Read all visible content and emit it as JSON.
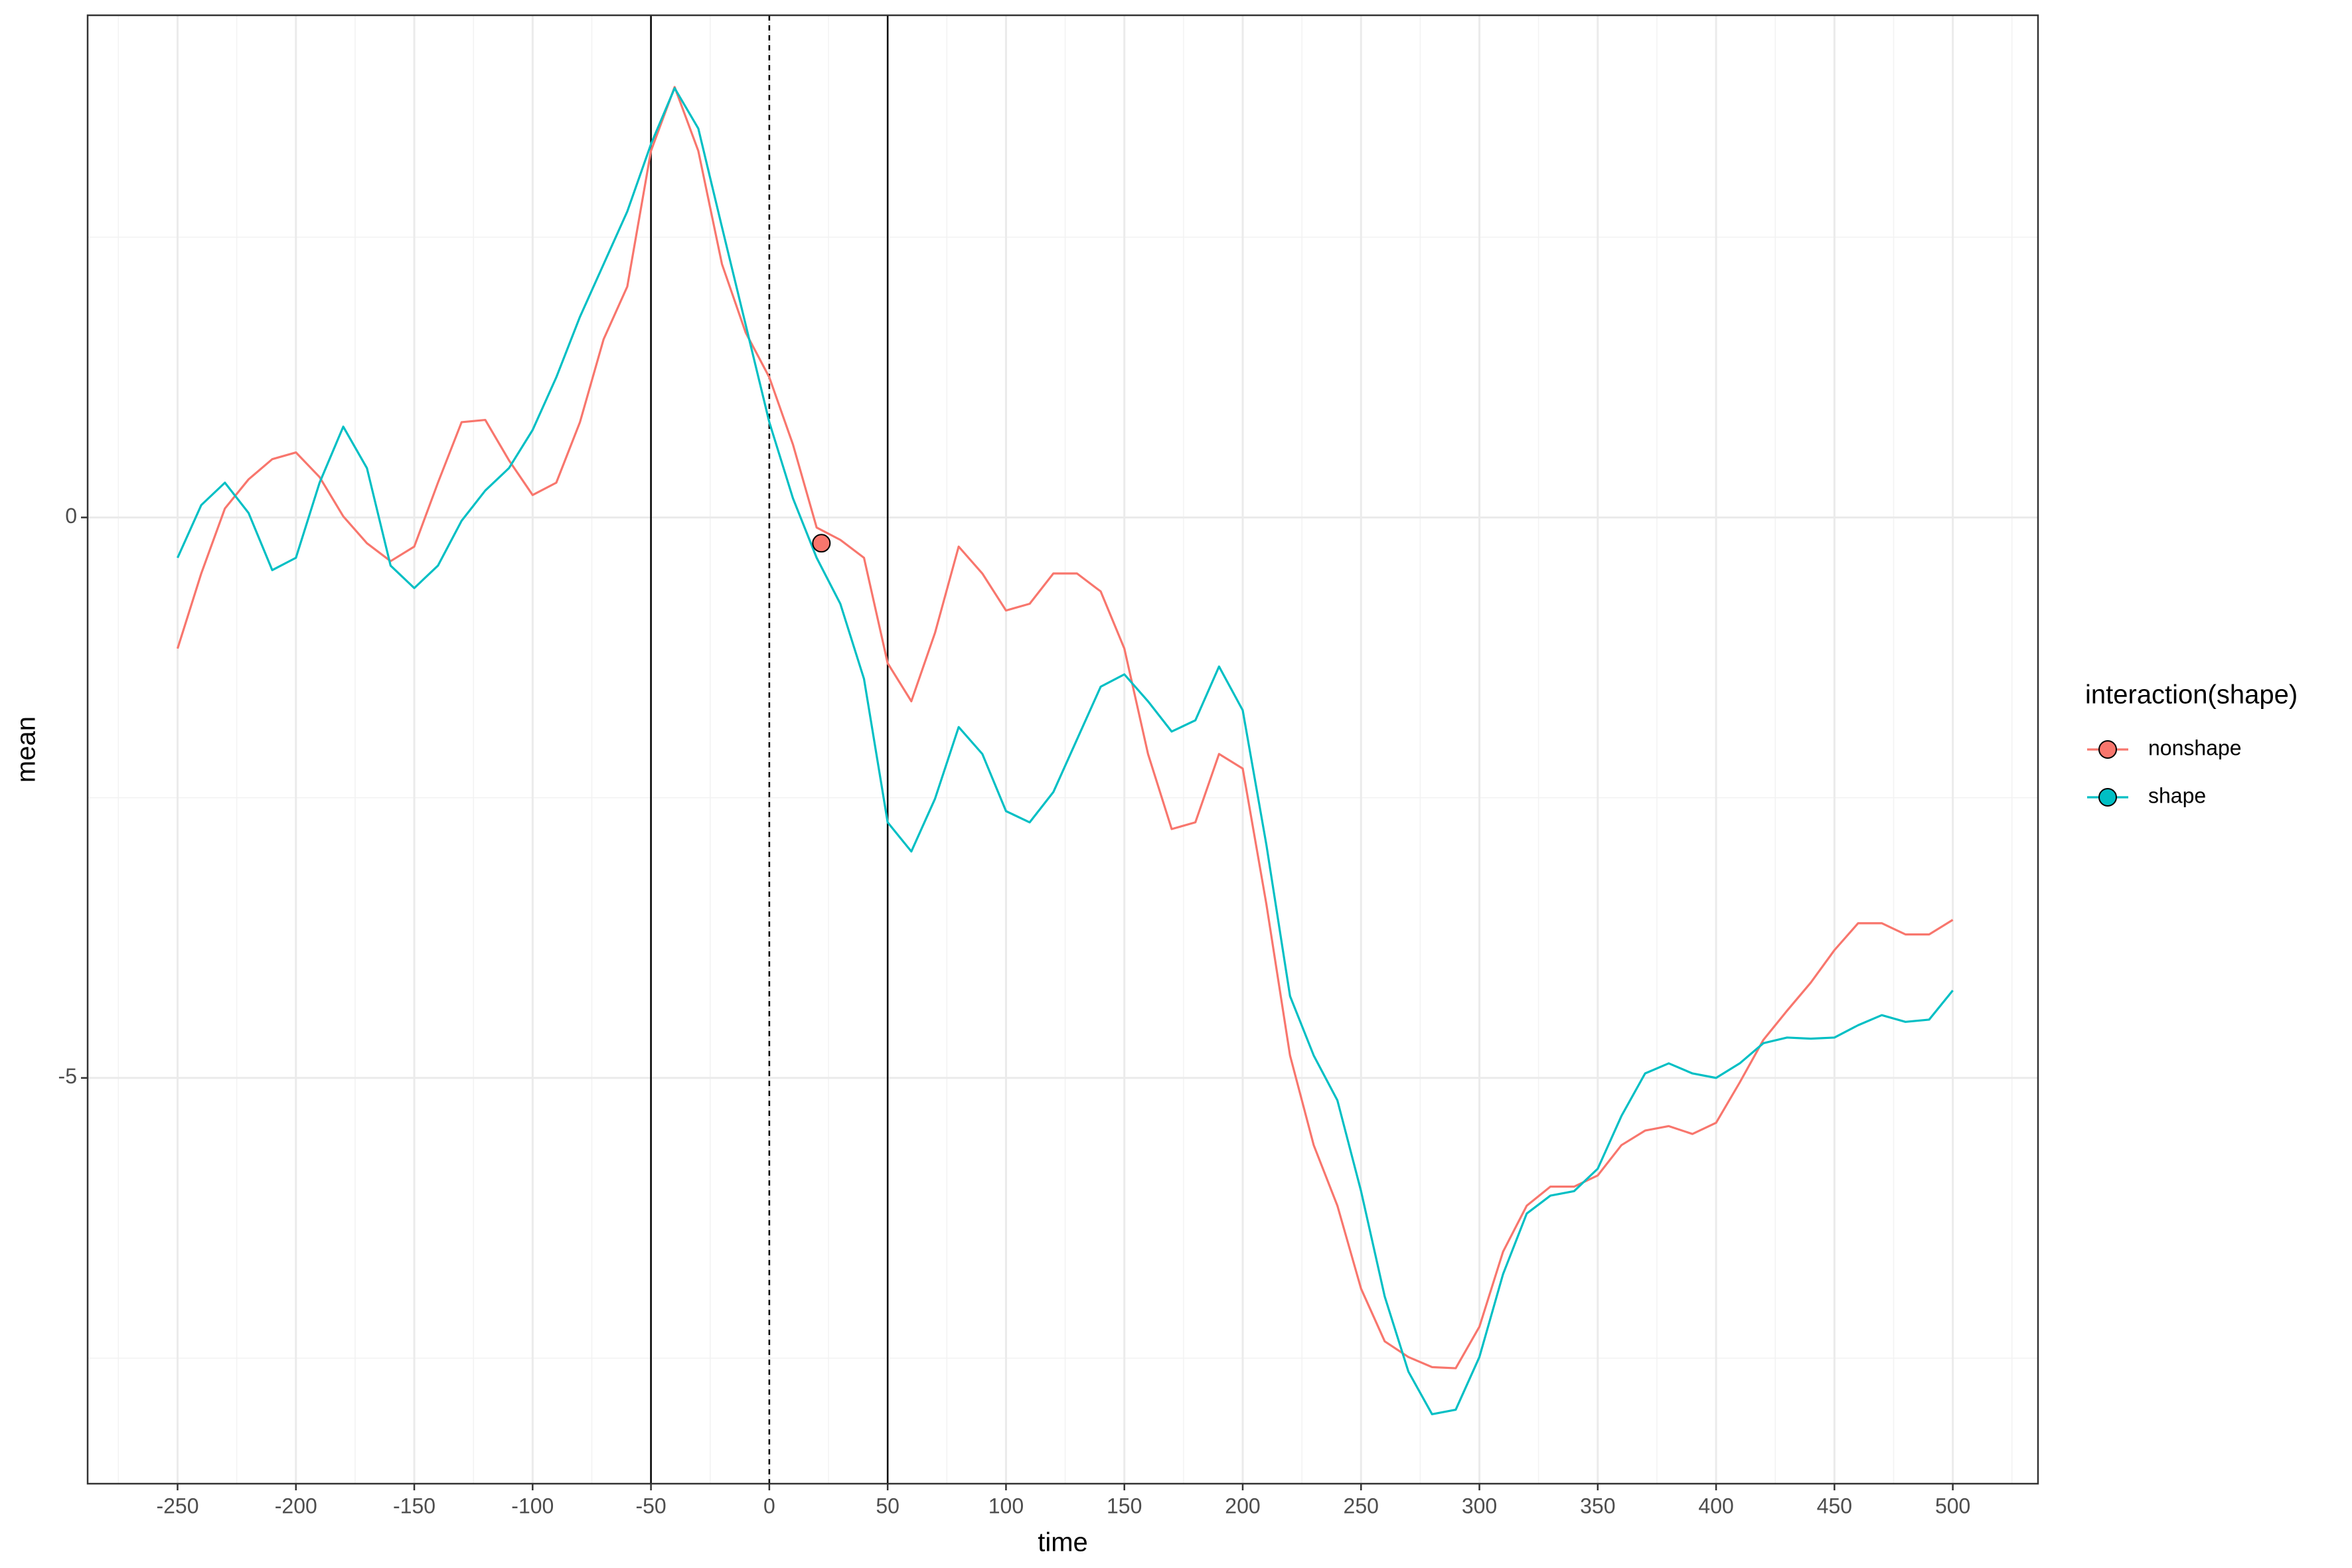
{
  "chart_data": {
    "type": "line",
    "xlabel": "time",
    "ylabel": "mean",
    "legend_title": "interaction(shape)",
    "legend_position": "right",
    "grid": true,
    "xlim": [
      -288,
      536
    ],
    "ylim": [
      -8.62,
      4.48
    ],
    "xticks": [
      -250,
      -200,
      -150,
      -100,
      -50,
      0,
      50,
      100,
      150,
      200,
      250,
      300,
      350,
      400,
      450,
      500
    ],
    "yticks": [
      -5,
      0
    ],
    "vlines": [
      -50,
      0,
      50
    ],
    "vline_styles": [
      "solid",
      "dashed",
      "solid"
    ],
    "highlight": {
      "x": 22,
      "y": -0.23,
      "color": "#F8766D"
    },
    "x": [
      -250,
      -240,
      -230,
      -220,
      -210,
      -200,
      -190,
      -180,
      -170,
      -160,
      -150,
      -140,
      -130,
      -120,
      -110,
      -100,
      -90,
      -80,
      -70,
      -60,
      -50,
      -40,
      -30,
      -20,
      -10,
      0,
      10,
      20,
      30,
      40,
      50,
      60,
      70,
      80,
      90,
      100,
      110,
      120,
      130,
      140,
      150,
      160,
      170,
      180,
      190,
      200,
      210,
      220,
      230,
      240,
      250,
      260,
      270,
      280,
      290,
      300,
      310,
      320,
      330,
      340,
      350,
      360,
      370,
      380,
      390,
      400,
      410,
      420,
      430,
      440,
      450,
      460,
      470,
      480,
      490,
      500
    ],
    "series": [
      {
        "name": "nonshape",
        "color": "#F8766D",
        "values": [
          -1.17,
          -0.5,
          0.08,
          0.34,
          0.52,
          0.58,
          0.36,
          0.01,
          -0.23,
          -0.39,
          -0.26,
          0.31,
          0.85,
          0.87,
          0.51,
          0.2,
          0.31,
          0.85,
          1.59,
          2.06,
          3.27,
          3.84,
          3.27,
          2.26,
          1.65,
          1.25,
          0.65,
          -0.09,
          -0.2,
          -0.36,
          -1.3,
          -1.64,
          -1.03,
          -0.26,
          -0.5,
          -0.83,
          -0.77,
          -0.5,
          -0.5,
          -0.66,
          -1.17,
          -2.11,
          -2.78,
          -2.72,
          -2.11,
          -2.24,
          -3.45,
          -4.8,
          -5.6,
          -6.14,
          -6.88,
          -7.35,
          -7.49,
          -7.58,
          -7.59,
          -7.22,
          -6.55,
          -6.14,
          -5.97,
          -5.97,
          -5.87,
          -5.6,
          -5.47,
          -5.43,
          -5.5,
          -5.4,
          -5.04,
          -4.66,
          -4.4,
          -4.15,
          -3.86,
          -3.62,
          -3.62,
          -3.72,
          -3.72,
          -3.59
        ]
      },
      {
        "name": "shape",
        "color": "#00BFC4",
        "values": [
          -0.36,
          0.11,
          0.31,
          0.04,
          -0.47,
          -0.36,
          0.31,
          0.81,
          0.44,
          -0.43,
          -0.63,
          -0.43,
          -0.03,
          0.24,
          0.44,
          0.78,
          1.25,
          1.79,
          2.26,
          2.73,
          3.33,
          3.83,
          3.47,
          2.59,
          1.72,
          0.85,
          0.17,
          -0.36,
          -0.77,
          -1.44,
          -2.72,
          -2.98,
          -2.51,
          -1.87,
          -2.11,
          -2.62,
          -2.72,
          -2.45,
          -1.98,
          -1.51,
          -1.4,
          -1.64,
          -1.91,
          -1.81,
          -1.33,
          -1.72,
          -2.92,
          -4.27,
          -4.8,
          -5.2,
          -6.01,
          -6.95,
          -7.62,
          -8.0,
          -7.96,
          -7.49,
          -6.75,
          -6.21,
          -6.05,
          -6.01,
          -5.81,
          -5.34,
          -4.96,
          -4.87,
          -4.96,
          -5.0,
          -4.87,
          -4.69,
          -4.64,
          -4.65,
          -4.64,
          -4.53,
          -4.44,
          -4.5,
          -4.48,
          -4.22
        ]
      }
    ]
  }
}
